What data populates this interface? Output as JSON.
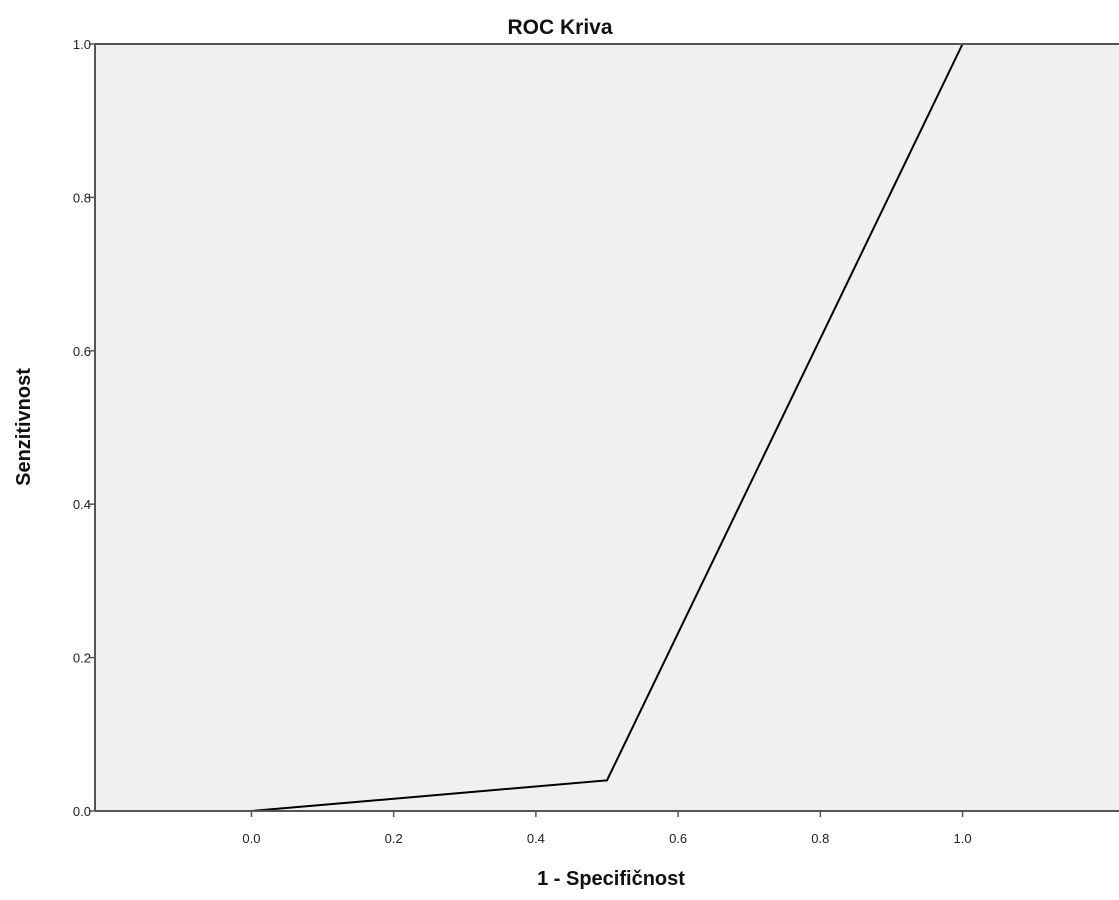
{
  "chart_data": {
    "type": "line",
    "title": "ROC Kriva",
    "xlabel": "1 - Specifičnost",
    "ylabel": "Senzitivnost",
    "xlim": [
      -0.22,
      1.22
    ],
    "ylim": [
      0,
      1
    ],
    "x_ticks": [
      0.0,
      0.2,
      0.4,
      0.6,
      0.8,
      1.0
    ],
    "x_tick_labels": [
      "0.0",
      "0.2",
      "0.4",
      "0.6",
      "0.8",
      "1.0"
    ],
    "y_ticks": [
      0.0,
      0.2,
      0.4,
      0.6,
      0.8,
      1.0
    ],
    "y_tick_labels": [
      "0.0",
      "0.2",
      "0.4",
      "0.6",
      "0.8",
      "1.0"
    ],
    "grid": false,
    "series": [
      {
        "x": [
          0.0,
          0.5,
          1.0
        ],
        "y": [
          0.0,
          0.04,
          1.0
        ]
      }
    ],
    "colors": {
      "plot_background": "#f0f0f0",
      "line": "#000000",
      "frame": "#555555"
    }
  }
}
